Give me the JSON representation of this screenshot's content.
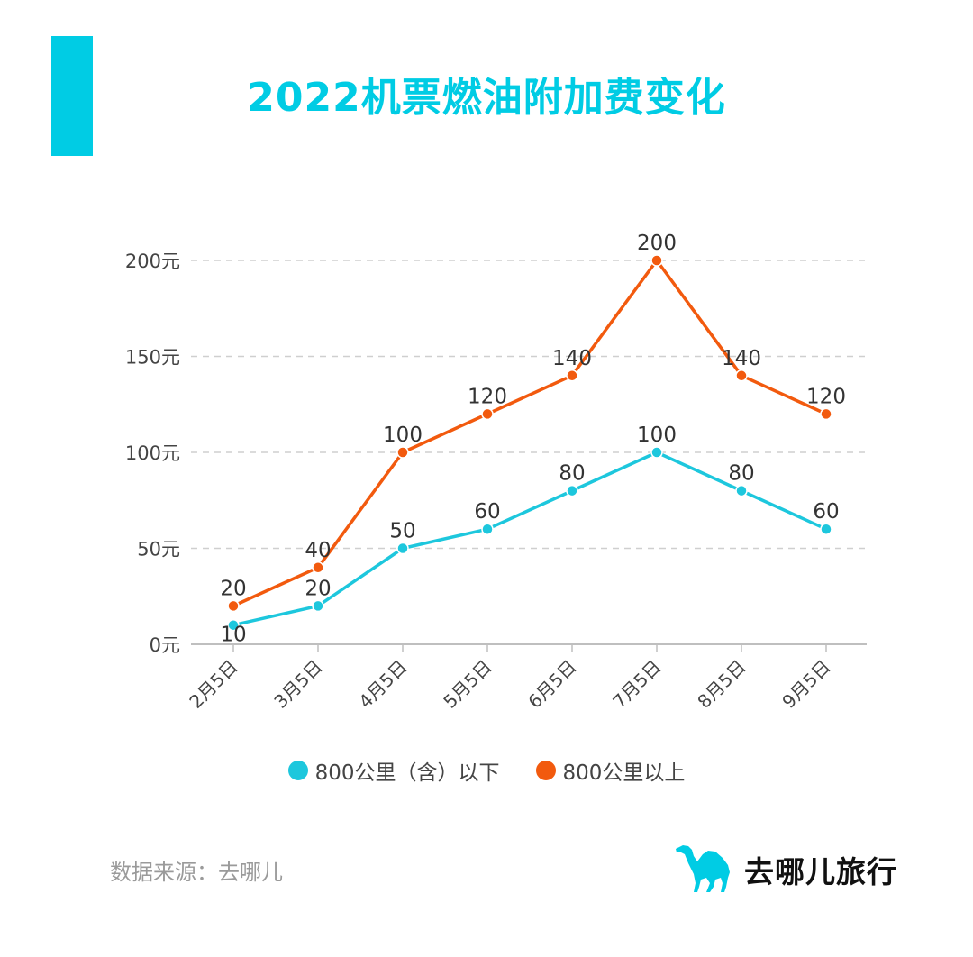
{
  "colors": {
    "accent": "#00CCE4",
    "series_low": "#1DC7DD",
    "series_high": "#F25A0E",
    "grid": "#CFCFCF",
    "axis": "#BFBFBF"
  },
  "header": {
    "title": "2022机票燃油附加费变化"
  },
  "chart_data": {
    "type": "line",
    "title": "2022机票燃油附加费变化",
    "xlabel": "",
    "ylabel": "",
    "categories": [
      "2月5日",
      "3月5日",
      "4月5日",
      "5月5日",
      "6月5日",
      "7月5日",
      "8月5日",
      "9月5日"
    ],
    "series": [
      {
        "name": "800公里（含）以下",
        "color": "#1DC7DD",
        "values": [
          10,
          20,
          50,
          60,
          80,
          100,
          80,
          60
        ]
      },
      {
        "name": "800公里以上",
        "color": "#F25A0E",
        "values": [
          20,
          40,
          100,
          120,
          140,
          200,
          140,
          120
        ]
      }
    ],
    "ylim": [
      0,
      200
    ],
    "yticks": [
      0,
      50,
      100,
      150,
      200
    ],
    "ytick_labels": [
      "0元",
      "50元",
      "100元",
      "150元",
      "200元"
    ],
    "grid": true,
    "grid_style": "dashed",
    "data_labels": true,
    "legend_position": "bottom"
  },
  "legend": {
    "items": [
      {
        "label": "800公里（含）以下",
        "color": "#1DC7DD"
      },
      {
        "label": "800公里以上",
        "color": "#F25A0E"
      }
    ]
  },
  "footer": {
    "source": "数据来源：去哪儿",
    "brand_icon": "camel-icon",
    "brand_name": "去哪儿旅行"
  }
}
